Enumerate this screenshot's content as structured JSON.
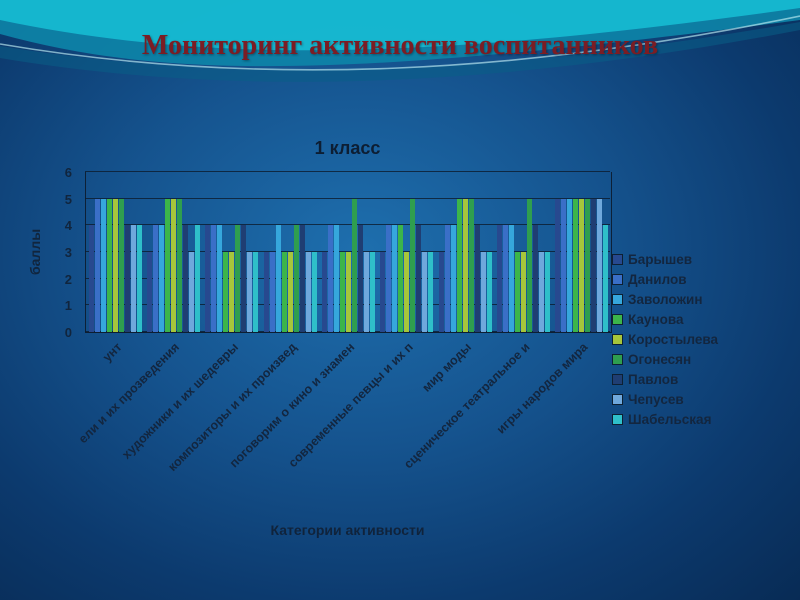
{
  "slide": {
    "title": "Мониторинг активности воспитанников"
  },
  "chart_data": {
    "type": "bar",
    "title": "1 класс",
    "xlabel": "Категории активности",
    "ylabel": "баллы",
    "ylim": [
      0,
      6
    ],
    "yticks": [
      0,
      1,
      2,
      3,
      4,
      5,
      6
    ],
    "grid": true,
    "legend_position": "right",
    "categories": [
      "унт",
      "ели и их прозведения",
      "художники и их шедевры",
      "композиторы и их произвед",
      "поговорим о кино и знамен",
      "современные певцы и их п",
      "мир моды",
      "сценическое театральное и",
      "игры народов мира"
    ],
    "series": [
      {
        "name": "Барышев",
        "color": "#27498f",
        "values": [
          4,
          3,
          4,
          3,
          3,
          3,
          3,
          4,
          5
        ]
      },
      {
        "name": "Данилов",
        "color": "#3a6fc7",
        "values": [
          5,
          4,
          4,
          3,
          4,
          4,
          4,
          4,
          5
        ]
      },
      {
        "name": "Заволожин",
        "color": "#36a7dc",
        "values": [
          5,
          4,
          4,
          4,
          4,
          4,
          4,
          4,
          5
        ]
      },
      {
        "name": "Каунова",
        "color": "#3cb54a",
        "values": [
          5,
          5,
          3,
          3,
          3,
          4,
          5,
          3,
          5
        ]
      },
      {
        "name": "Коростылева",
        "color": "#a6c63b",
        "values": [
          5,
          5,
          3,
          3,
          3,
          3,
          5,
          3,
          5
        ]
      },
      {
        "name": "Огонесян",
        "color": "#2f9e4f",
        "values": [
          5,
          5,
          4,
          4,
          5,
          5,
          5,
          5,
          5
        ]
      },
      {
        "name": "Павлов",
        "color": "#1f3e73",
        "values": [
          4,
          4,
          4,
          4,
          4,
          4,
          4,
          4,
          5
        ]
      },
      {
        "name": "Чепусев",
        "color": "#6fa8dc",
        "values": [
          4,
          3,
          3,
          3,
          3,
          3,
          3,
          3,
          5
        ]
      },
      {
        "name": "Шабельская",
        "color": "#2fbfc9",
        "values": [
          4,
          4,
          3,
          3,
          3,
          3,
          3,
          3,
          4
        ]
      }
    ]
  }
}
